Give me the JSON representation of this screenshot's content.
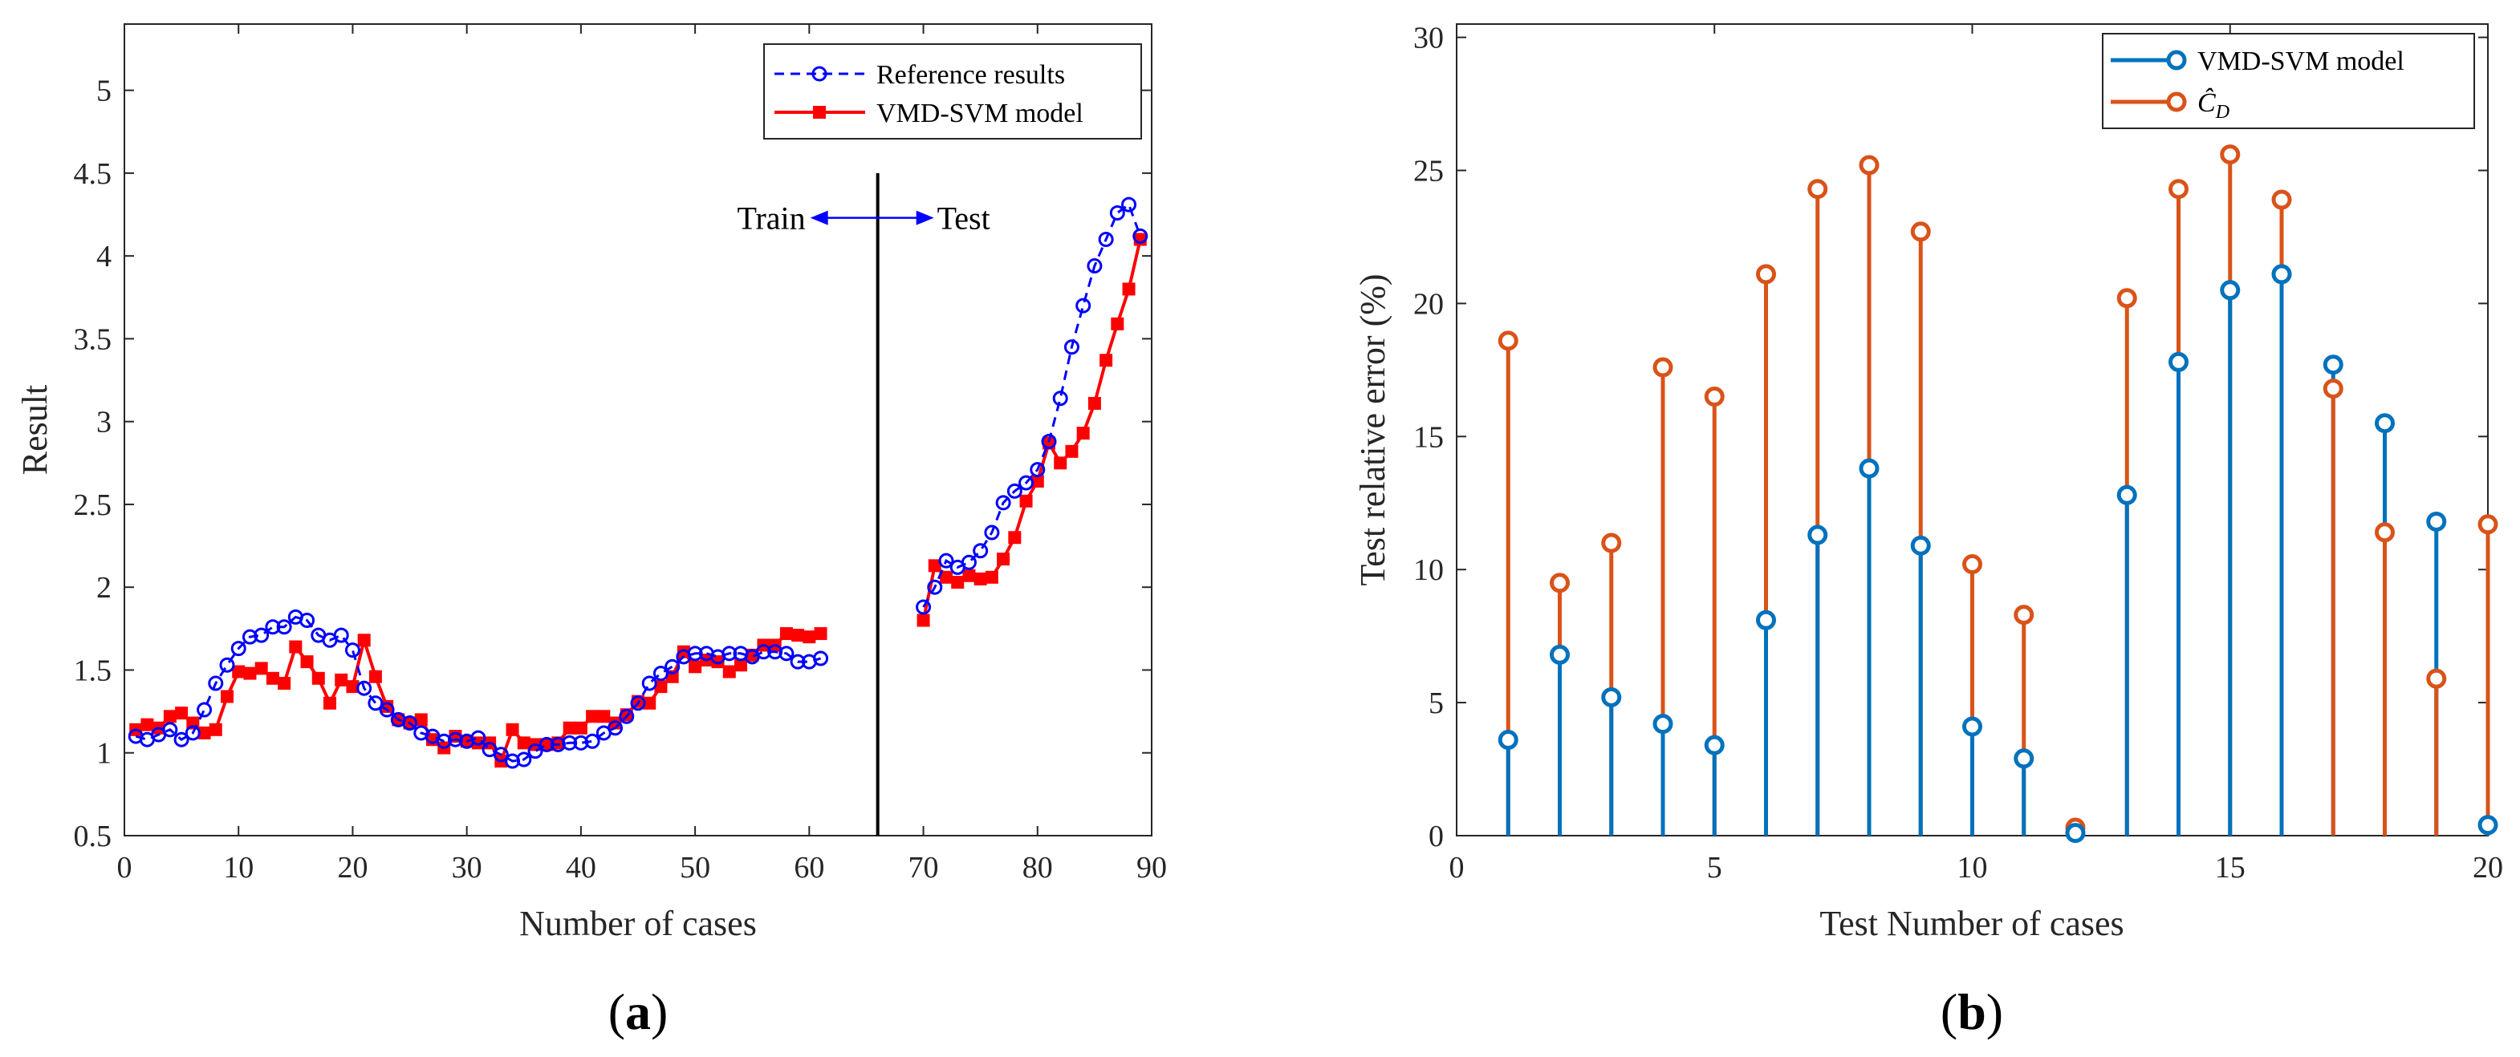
{
  "chart_data": [
    {
      "type": "line",
      "panel_label": {
        "open": "(",
        "letter": "a",
        "close": ")"
      },
      "xlabel": "Number of cases",
      "ylabel": "Result",
      "xlim": [
        0,
        90
      ],
      "ylim": [
        0.5,
        5.4
      ],
      "xticks": [
        "0",
        "10",
        "20",
        "30",
        "40",
        "50",
        "60",
        "70",
        "80",
        "90"
      ],
      "yticks": [
        "0.5",
        "1",
        "1.5",
        "2",
        "2.5",
        "3",
        "3.5",
        "4",
        "4.5",
        "5"
      ],
      "divider_x": 66,
      "annotation": {
        "left": "Train",
        "right": "Test"
      },
      "legend_position": "top-right",
      "colors": {
        "reference": "#0000ff",
        "model": "#ff0000",
        "axis": "#262626",
        "divider": "#000000",
        "arrow": "#0000ff"
      },
      "series": [
        {
          "name": "Reference results",
          "style": "dashed-circle",
          "segments": [
            {
              "x": [
                1,
                2,
                3,
                4,
                5,
                6,
                7,
                8,
                9,
                10,
                11,
                12,
                13,
                14,
                15,
                16,
                17,
                18,
                19,
                20,
                21,
                22,
                23,
                24,
                25,
                26,
                27,
                28,
                29,
                30,
                31,
                32,
                33,
                34,
                35,
                36,
                37,
                38,
                39,
                40,
                41,
                42,
                43,
                44,
                45,
                46,
                47,
                48,
                49,
                50,
                51,
                52,
                53,
                54,
                55,
                56,
                57,
                58,
                59,
                60,
                61
              ],
              "y": [
                1.1,
                1.08,
                1.11,
                1.14,
                1.08,
                1.12,
                1.26,
                1.42,
                1.53,
                1.63,
                1.7,
                1.71,
                1.76,
                1.76,
                1.82,
                1.8,
                1.71,
                1.68,
                1.71,
                1.62,
                1.39,
                1.3,
                1.26,
                1.2,
                1.18,
                1.12,
                1.1,
                1.07,
                1.08,
                1.07,
                1.09,
                1.02,
                0.99,
                0.95,
                0.96,
                1.01,
                1.05,
                1.05,
                1.06,
                1.06,
                1.07,
                1.12,
                1.15,
                1.22,
                1.3,
                1.42,
                1.48,
                1.52,
                1.58,
                1.6,
                1.6,
                1.58,
                1.6,
                1.6,
                1.58,
                1.61,
                1.61,
                1.6,
                1.55,
                1.55,
                1.57
              ]
            },
            {
              "x": [
                70,
                71,
                72,
                73,
                74,
                75,
                76,
                77,
                78,
                79,
                80,
                81,
                82,
                83,
                84,
                85,
                86,
                87,
                88,
                89
              ],
              "y": [
                1.88,
                2.0,
                2.16,
                2.12,
                2.15,
                2.22,
                2.33,
                2.51,
                2.58,
                2.63,
                2.71,
                2.88,
                3.14,
                3.45,
                3.7,
                3.94,
                4.1,
                4.26,
                4.31,
                4.12
              ]
            }
          ]
        },
        {
          "name": "VMD-SVM model",
          "style": "solid-square",
          "segments": [
            {
              "x": [
                1,
                2,
                3,
                4,
                5,
                6,
                7,
                8,
                9,
                10,
                11,
                12,
                13,
                14,
                15,
                16,
                17,
                18,
                19,
                20,
                21,
                22,
                23,
                24,
                25,
                26,
                27,
                28,
                29,
                30,
                31,
                32,
                33,
                34,
                35,
                36,
                37,
                38,
                39,
                40,
                41,
                42,
                43,
                44,
                45,
                46,
                47,
                48,
                49,
                50,
                51,
                52,
                53,
                54,
                55,
                56,
                57,
                58,
                59,
                60,
                61
              ],
              "y": [
                1.14,
                1.17,
                1.15,
                1.22,
                1.24,
                1.18,
                1.12,
                1.14,
                1.34,
                1.49,
                1.48,
                1.51,
                1.45,
                1.42,
                1.64,
                1.55,
                1.45,
                1.3,
                1.44,
                1.4,
                1.68,
                1.46,
                1.28,
                1.2,
                1.18,
                1.2,
                1.08,
                1.03,
                1.1,
                1.07,
                1.06,
                1.06,
                0.95,
                1.14,
                1.06,
                1.05,
                1.05,
                1.06,
                1.15,
                1.15,
                1.22,
                1.22,
                1.18,
                1.23,
                1.31,
                1.3,
                1.4,
                1.46,
                1.61,
                1.52,
                1.56,
                1.55,
                1.49,
                1.53,
                1.59,
                1.65,
                1.65,
                1.72,
                1.71,
                1.7,
                1.72
              ]
            },
            {
              "x": [
                70,
                71,
                72,
                73,
                74,
                75,
                76,
                77,
                78,
                79,
                80,
                81,
                82,
                83,
                84,
                85,
                86,
                87,
                88,
                89
              ],
              "y": [
                1.8,
                2.13,
                2.06,
                2.03,
                2.07,
                2.05,
                2.06,
                2.17,
                2.3,
                2.52,
                2.64,
                2.87,
                2.75,
                2.82,
                2.93,
                3.11,
                3.37,
                3.59,
                3.8,
                4.1
              ]
            }
          ]
        }
      ]
    },
    {
      "type": "stem",
      "panel_label": {
        "open": "(",
        "letter": "b",
        "close": ")"
      },
      "xlabel": "Test Number of cases",
      "ylabel": "Test relative error (%)",
      "xlim": [
        0,
        20
      ],
      "ylim": [
        0,
        30.5
      ],
      "xticks": [
        "0",
        "5",
        "10",
        "15",
        "20"
      ],
      "yticks": [
        "0",
        "5",
        "10",
        "15",
        "20",
        "25",
        "30"
      ],
      "legend_position": "top-right",
      "colors": {
        "vmd_svm": "#0072bd",
        "cd": "#d95319",
        "axis": "#262626"
      },
      "categories": [
        1,
        2,
        3,
        4,
        5,
        6,
        7,
        8,
        9,
        10,
        11,
        12,
        13,
        14,
        15,
        16,
        17,
        18,
        19,
        20
      ],
      "series": [
        {
          "name": "VMD-SVM model",
          "values": [
            3.6,
            6.8,
            5.2,
            4.2,
            3.4,
            8.1,
            11.3,
            13.8,
            10.9,
            4.1,
            2.9,
            0.1,
            12.8,
            17.8,
            20.5,
            21.1,
            17.7,
            15.5,
            11.8,
            0.4
          ]
        },
        {
          "name": "Ĉ",
          "name_subscript": "D",
          "values": [
            18.6,
            9.5,
            11.0,
            17.6,
            16.5,
            21.1,
            24.3,
            25.2,
            22.7,
            10.2,
            8.3,
            0.3,
            20.2,
            24.3,
            25.6,
            23.9,
            16.8,
            11.4,
            5.9,
            11.7
          ]
        }
      ]
    }
  ]
}
